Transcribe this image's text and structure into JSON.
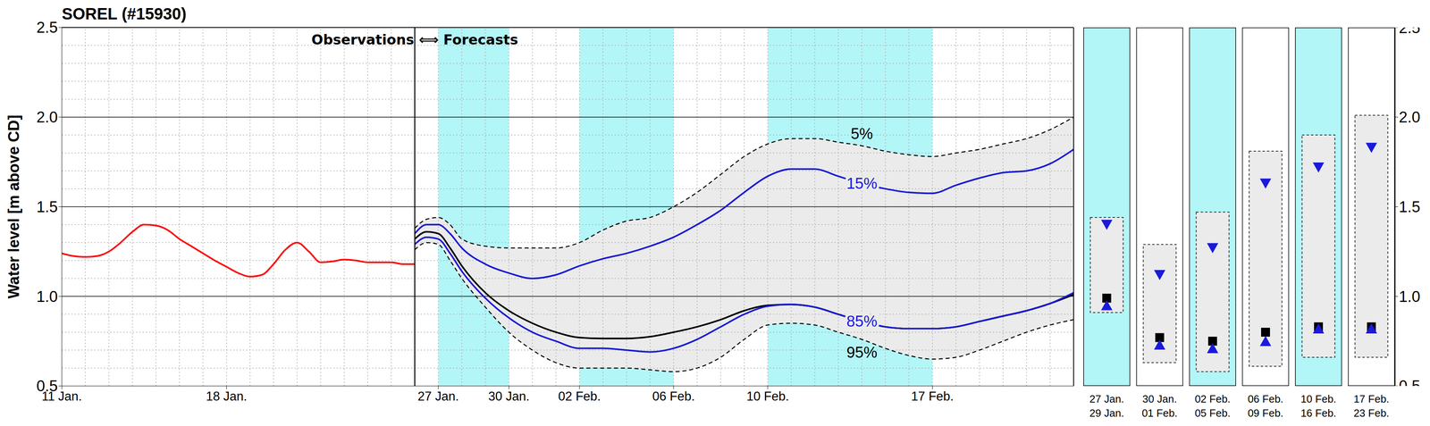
{
  "chart_data": {
    "type": "line",
    "title": "SOREL (#15930)",
    "y_label": "Water level [m above CD]",
    "xlim": [
      0,
      43
    ],
    "xticks": [
      {
        "value": 0,
        "label": "11 Jan."
      },
      {
        "value": 7,
        "label": "18 Jan."
      },
      {
        "value": 16,
        "label": "27 Jan."
      },
      {
        "value": 19,
        "label": "30 Jan."
      },
      {
        "value": 22,
        "label": "02 Feb."
      },
      {
        "value": 26,
        "label": "06 Feb."
      },
      {
        "value": 30,
        "label": "10 Feb."
      },
      {
        "value": 37,
        "label": "17 Feb."
      }
    ],
    "ylim": [
      0.5,
      2.5
    ],
    "yticks": [
      0.5,
      {
        "value": 1,
        "label": "1.0"
      },
      1.5,
      {
        "value": 2,
        "label": "2.0"
      },
      2.5
    ],
    "grid": true,
    "annotations": [
      {
        "text": "Observations ⟺ Forecasts",
        "x": 15
      }
    ],
    "shaded": {
      "color": "#b3f6f8",
      "ranges": [
        [
          16,
          19
        ],
        [
          22,
          26
        ],
        [
          30,
          37
        ]
      ]
    },
    "band": {
      "lower": "95%",
      "upper": "5%",
      "color": "#ebebeb"
    },
    "series": [
      {
        "color": "#ff0000",
        "line_style": "solid",
        "x": [
          0,
          0.5,
          1,
          1.5,
          2,
          2.5,
          3,
          3.5,
          4,
          4.5,
          5,
          5.5,
          6,
          6.5,
          7,
          7.5,
          8,
          8.5,
          9,
          9.5,
          10,
          10.5,
          11,
          11.5,
          12,
          12.5,
          13,
          13.5,
          14,
          14.5,
          15
        ],
        "values": [
          1.24,
          1.225,
          1.22,
          1.225,
          1.25,
          1.3,
          1.36,
          1.4,
          1.395,
          1.37,
          1.32,
          1.28,
          1.24,
          1.2,
          1.165,
          1.13,
          1.11,
          1.12,
          1.18,
          1.26,
          1.3,
          1.25,
          1.19,
          1.195,
          1.205,
          1.2,
          1.19,
          1.19,
          1.19,
          1.18,
          1.18
        ]
      },
      {
        "color": "#000000",
        "line_style": "solid",
        "x": [
          15,
          15.5,
          16,
          16.5,
          17,
          18,
          19,
          20,
          21,
          22,
          23,
          24,
          25,
          26,
          27,
          28,
          29,
          30,
          31,
          32,
          33,
          34,
          35,
          36,
          37,
          38,
          39,
          40,
          41,
          42,
          43
        ],
        "values": [
          1.32,
          1.36,
          1.35,
          1.27,
          1.17,
          1.02,
          0.92,
          0.85,
          0.8,
          0.77,
          0.765,
          0.765,
          0.775,
          0.8,
          0.83,
          0.87,
          0.92,
          0.95,
          0.955,
          0.94,
          0.9,
          0.86,
          0.83,
          0.82,
          0.82,
          0.83,
          0.86,
          0.89,
          0.92,
          0.96,
          1.01
        ]
      },
      {
        "name": "15%",
        "color": "#1a1adb",
        "line_style": "solid",
        "x": [
          15,
          15.5,
          16,
          16.5,
          17,
          18,
          19,
          20,
          21,
          22,
          23,
          24,
          25,
          26,
          27,
          28,
          29,
          30,
          31,
          32,
          33,
          34,
          35,
          36,
          37,
          38,
          39,
          40,
          41,
          42,
          43
        ],
        "values": [
          1.35,
          1.4,
          1.4,
          1.35,
          1.27,
          1.18,
          1.13,
          1.1,
          1.12,
          1.17,
          1.21,
          1.24,
          1.28,
          1.33,
          1.4,
          1.48,
          1.58,
          1.67,
          1.71,
          1.71,
          1.67,
          1.63,
          1.6,
          1.58,
          1.575,
          1.62,
          1.66,
          1.69,
          1.7,
          1.74,
          1.82
        ]
      },
      {
        "name": "85%",
        "color": "#1a1adb",
        "line_style": "solid",
        "x": [
          15,
          15.5,
          16,
          16.5,
          17,
          18,
          19,
          20,
          21,
          22,
          23,
          24,
          25,
          26,
          27,
          28,
          29,
          30,
          31,
          32,
          33,
          34,
          35,
          36,
          37,
          38,
          39,
          40,
          41,
          42,
          43
        ],
        "values": [
          1.29,
          1.33,
          1.32,
          1.24,
          1.14,
          0.99,
          0.88,
          0.8,
          0.75,
          0.71,
          0.71,
          0.7,
          0.69,
          0.71,
          0.76,
          0.83,
          0.9,
          0.945,
          0.955,
          0.94,
          0.9,
          0.86,
          0.83,
          0.82,
          0.82,
          0.83,
          0.86,
          0.89,
          0.92,
          0.96,
          1.02
        ]
      },
      {
        "name": "5%",
        "color": "#000000",
        "line_style": "dashed",
        "x": [
          15,
          15.5,
          16,
          16.5,
          17,
          18,
          19,
          20,
          21,
          22,
          23,
          24,
          25,
          26,
          27,
          28,
          29,
          30,
          31,
          32,
          33,
          34,
          35,
          36,
          37,
          38,
          39,
          40,
          41,
          42,
          43
        ],
        "values": [
          1.38,
          1.43,
          1.44,
          1.4,
          1.32,
          1.28,
          1.27,
          1.27,
          1.27,
          1.3,
          1.37,
          1.42,
          1.44,
          1.5,
          1.58,
          1.68,
          1.78,
          1.85,
          1.88,
          1.88,
          1.86,
          1.84,
          1.81,
          1.79,
          1.78,
          1.8,
          1.82,
          1.85,
          1.88,
          1.93,
          2.0
        ]
      },
      {
        "name": "95%",
        "color": "#000000",
        "line_style": "dashed",
        "x": [
          15,
          15.5,
          16,
          16.5,
          17,
          18,
          19,
          20,
          21,
          22,
          23,
          24,
          25,
          26,
          27,
          28,
          29,
          30,
          31,
          32,
          33,
          34,
          35,
          36,
          37,
          38,
          39,
          40,
          41,
          42,
          43
        ],
        "values": [
          1.26,
          1.3,
          1.29,
          1.2,
          1.1,
          0.94,
          0.8,
          0.7,
          0.63,
          0.6,
          0.6,
          0.6,
          0.59,
          0.58,
          0.6,
          0.66,
          0.76,
          0.84,
          0.85,
          0.84,
          0.8,
          0.76,
          0.71,
          0.67,
          0.65,
          0.66,
          0.7,
          0.75,
          0.8,
          0.84,
          0.87
        ]
      }
    ],
    "panels": {
      "categories": [
        [
          "27 Jan.",
          "29 Jan."
        ],
        [
          "30 Jan.",
          "01 Feb."
        ],
        [
          "02 Feb.",
          "05 Feb."
        ],
        [
          "06 Feb.",
          "09 Feb."
        ],
        [
          "10 Feb.",
          "16 Feb."
        ],
        [
          "17 Feb.",
          "23 Feb."
        ]
      ],
      "shaded": [
        true,
        false,
        true,
        false,
        true,
        false
      ],
      "low": [
        0.91,
        0.63,
        0.58,
        0.61,
        0.66,
        0.66
      ],
      "high": [
        1.44,
        1.29,
        1.47,
        1.81,
        1.9,
        2.01
      ],
      "ylim": [
        0.5,
        2.5
      ],
      "yticks": [
        0.5,
        {
          "value": 1,
          "label": "1.0"
        },
        1.5,
        {
          "value": 2,
          "label": "2.0"
        },
        2.5
      ],
      "series": [
        {
          "color": "#1a1adb",
          "marker": "triangle-down",
          "values": [
            1.4,
            1.12,
            1.27,
            1.63,
            1.72,
            1.83
          ]
        },
        {
          "color": "#000000",
          "marker": "square",
          "values": [
            0.99,
            0.77,
            0.75,
            0.8,
            0.83,
            0.83
          ]
        },
        {
          "color": "#1a1adb",
          "marker": "triangle-up",
          "values": [
            0.95,
            0.73,
            0.71,
            0.75,
            0.82,
            0.82
          ]
        }
      ]
    }
  }
}
